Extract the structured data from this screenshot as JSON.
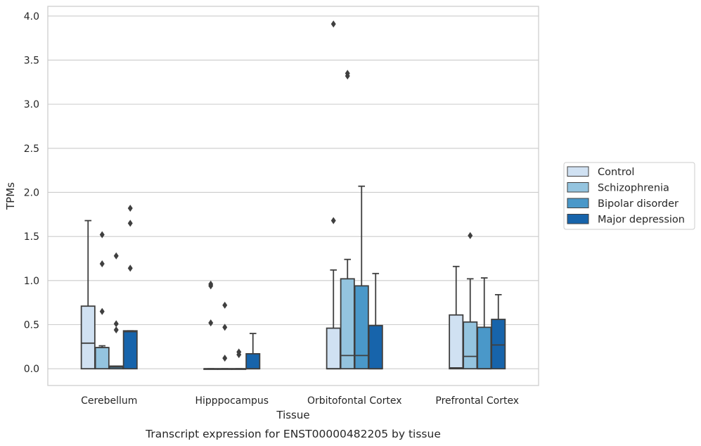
{
  "chart_data": {
    "type": "box",
    "title": "",
    "caption": "Transcript expression for ENST00000482205 by tissue",
    "xlabel": "Tissue",
    "ylabel": "TPMs",
    "ylim": [
      -0.19,
      4.11
    ],
    "yticks": [
      0.0,
      0.5,
      1.0,
      1.5,
      2.0,
      2.5,
      3.0,
      3.5,
      4.0
    ],
    "grid": true,
    "legend_position": "right",
    "categories": [
      "Cerebellum",
      "Hipppocampus",
      "Orbitofontal Cortex",
      "Prefrontal Cortex"
    ],
    "series": [
      {
        "name": "Control",
        "color": "#d0e1f2",
        "boxes": [
          {
            "q1": 0.0,
            "median": 0.29,
            "q3": 0.71,
            "whisker_low": 0.0,
            "whisker_high": 1.68,
            "outliers": []
          },
          {
            "q1": 0.0,
            "median": 0.0,
            "q3": 0.0,
            "whisker_low": 0.0,
            "whisker_high": 0.0,
            "outliers": [
              0.94,
              0.96,
              0.52
            ]
          },
          {
            "q1": 0.0,
            "median": 0.0,
            "q3": 0.46,
            "whisker_low": 0.0,
            "whisker_high": 1.12,
            "outliers": [
              3.91,
              1.68
            ]
          },
          {
            "q1": 0.0,
            "median": 0.01,
            "q3": 0.61,
            "whisker_low": 0.0,
            "whisker_high": 1.16,
            "outliers": []
          }
        ]
      },
      {
        "name": "Schizophrenia",
        "color": "#94c4df",
        "boxes": [
          {
            "q1": 0.0,
            "median": 0.24,
            "q3": 0.24,
            "whisker_low": 0.0,
            "whisker_high": 0.26,
            "outliers": [
              1.52,
              1.19,
              0.65
            ]
          },
          {
            "q1": 0.0,
            "median": 0.0,
            "q3": 0.0,
            "whisker_low": 0.0,
            "whisker_high": 0.0,
            "outliers": [
              0.72,
              0.47,
              0.12
            ]
          },
          {
            "q1": 0.0,
            "median": 0.15,
            "q3": 1.02,
            "whisker_low": 0.0,
            "whisker_high": 1.24,
            "outliers": [
              3.35,
              3.32
            ]
          },
          {
            "q1": 0.0,
            "median": 0.14,
            "q3": 0.53,
            "whisker_low": 0.0,
            "whisker_high": 1.02,
            "outliers": [
              1.51
            ]
          }
        ]
      },
      {
        "name": "Bipolar disorder",
        "color": "#4a98c9",
        "boxes": [
          {
            "q1": 0.0,
            "median": 0.02,
            "q3": 0.03,
            "whisker_low": 0.0,
            "whisker_high": 0.03,
            "outliers": [
              1.28,
              0.51,
              0.44
            ]
          },
          {
            "q1": 0.0,
            "median": 0.0,
            "q3": 0.0,
            "whisker_low": 0.0,
            "whisker_high": 0.0,
            "outliers": [
              0.19,
              0.16
            ]
          },
          {
            "q1": 0.0,
            "median": 0.15,
            "q3": 0.94,
            "whisker_low": 0.0,
            "whisker_high": 2.07,
            "outliers": []
          },
          {
            "q1": 0.0,
            "median": 0.0,
            "q3": 0.47,
            "whisker_low": 0.0,
            "whisker_high": 1.03,
            "outliers": []
          }
        ]
      },
      {
        "name": "Major depression",
        "color": "#1764ab",
        "boxes": [
          {
            "q1": 0.0,
            "median": 0.42,
            "q3": 0.43,
            "whisker_low": 0.0,
            "whisker_high": 0.43,
            "outliers": [
              1.82,
              1.65,
              1.14
            ]
          },
          {
            "q1": 0.0,
            "median": 0.0,
            "q3": 0.17,
            "whisker_low": 0.0,
            "whisker_high": 0.4,
            "outliers": []
          },
          {
            "q1": 0.0,
            "median": 0.0,
            "q3": 0.49,
            "whisker_low": 0.0,
            "whisker_high": 1.08,
            "outliers": []
          },
          {
            "q1": 0.0,
            "median": 0.27,
            "q3": 0.56,
            "whisker_low": 0.0,
            "whisker_high": 0.84,
            "outliers": []
          }
        ]
      }
    ]
  }
}
